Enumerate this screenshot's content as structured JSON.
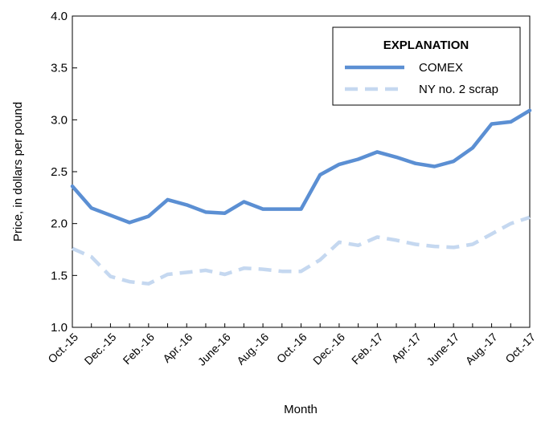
{
  "chart_data": {
    "type": "line",
    "xlabel": "Month",
    "ylabel": "Price, in dollars per pound",
    "ylim": [
      1.0,
      4.0
    ],
    "yticks": [
      "1.0",
      "1.5",
      "2.0",
      "2.5",
      "3.0",
      "3.5",
      "4.0"
    ],
    "x": [
      "Oct.-15",
      "Nov.-15",
      "Dec.-15",
      "Jan.-16",
      "Feb.-16",
      "Mar.-16",
      "Apr.-16",
      "May-16",
      "June-16",
      "July-16",
      "Aug.-16",
      "Sept.-16",
      "Oct.-16",
      "Nov.-16",
      "Dec.-16",
      "Jan.-17",
      "Feb.-17",
      "Mar.-17",
      "Apr.-17",
      "May-17",
      "June-17",
      "July-17",
      "Aug.-17",
      "Sept.-17",
      "Oct.-17"
    ],
    "xtick_labels": [
      "Oct.-15",
      "Dec.-15",
      "Feb.-16",
      "Apr.-16",
      "June-16",
      "Aug.-16",
      "Oct.-16",
      "Dec.-16",
      "Feb.-17",
      "Apr.-17",
      "June-17",
      "Aug.-17",
      "Oct.-17"
    ],
    "grid": false,
    "legend": {
      "title": "EXPLANATION",
      "placement": "top-right"
    },
    "series": [
      {
        "name": "COMEX",
        "style": "solid",
        "color": "#5B8FD3",
        "values": [
          2.36,
          2.15,
          2.08,
          2.01,
          2.07,
          2.23,
          2.18,
          2.11,
          2.1,
          2.21,
          2.14,
          2.14,
          2.14,
          2.47,
          2.57,
          2.62,
          2.69,
          2.64,
          2.58,
          2.55,
          2.6,
          2.73,
          2.96,
          2.98,
          3.09
        ]
      },
      {
        "name": "NY no. 2 scrap",
        "style": "dashed",
        "color": "#C5D8F0",
        "values": [
          1.76,
          1.68,
          1.49,
          1.44,
          1.42,
          1.51,
          1.53,
          1.55,
          1.51,
          1.57,
          1.56,
          1.54,
          1.54,
          1.65,
          1.82,
          1.79,
          1.87,
          1.84,
          1.8,
          1.78,
          1.77,
          1.8,
          1.9,
          2.0,
          2.06
        ]
      }
    ]
  }
}
